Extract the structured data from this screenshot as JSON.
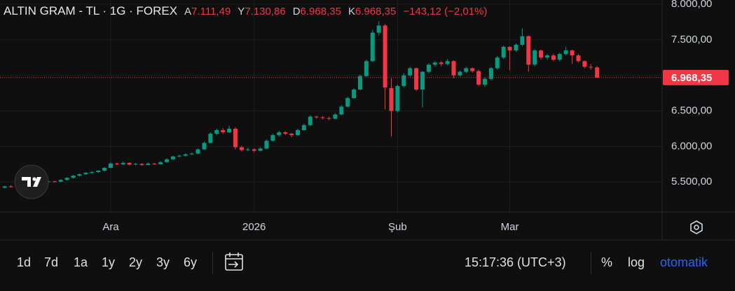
{
  "chart_data": {
    "type": "candlestick",
    "title": "ALTIN GRAM - TL · 1G · FOREX",
    "legend": {
      "open_key": "A",
      "open": "7.111,49",
      "high_key": "Y",
      "high": "7.130,86",
      "low_key": "D",
      "low": "6.968,35",
      "close_key": "K",
      "close": "6.968,35",
      "change": "−143,12 (−2,01%)"
    },
    "up_color": "#089981",
    "down_color": "#f23645",
    "grid": true,
    "categories": [
      null,
      null,
      null,
      null,
      null,
      null,
      null,
      null,
      null,
      null,
      null,
      null,
      null,
      null,
      null,
      null,
      null,
      "Ara",
      null,
      null,
      null,
      null,
      null,
      null,
      null,
      null,
      null,
      null,
      null,
      null,
      null,
      null,
      null,
      null,
      null,
      null,
      null,
      null,
      null,
      null,
      "2026",
      null,
      null,
      null,
      null,
      null,
      null,
      null,
      null,
      null,
      null,
      null,
      null,
      null,
      null,
      null,
      null,
      null,
      null,
      null,
      null,
      null,
      null,
      "Şub",
      null,
      null,
      null,
      null,
      null,
      null,
      null,
      null,
      null,
      null,
      null,
      null,
      null,
      null,
      null,
      null,
      null,
      "Mar",
      null,
      null,
      null,
      null,
      null,
      null,
      null,
      null,
      null,
      null,
      null,
      null,
      null
    ],
    "ohlc": [
      [
        5420,
        5450,
        5410,
        5440
      ],
      [
        5440,
        5455,
        5420,
        5430
      ],
      [
        5430,
        5460,
        5425,
        5450
      ],
      [
        5450,
        5480,
        5440,
        5470
      ],
      [
        5470,
        5500,
        5460,
        5490
      ],
      [
        5490,
        5505,
        5470,
        5480
      ],
      [
        5480,
        5515,
        5475,
        5500
      ],
      [
        5500,
        5525,
        5490,
        5510
      ],
      [
        5510,
        5520,
        5495,
        5505
      ],
      [
        5505,
        5540,
        5500,
        5530
      ],
      [
        5530,
        5570,
        5520,
        5560
      ],
      [
        5560,
        5600,
        5550,
        5590
      ],
      [
        5590,
        5620,
        5580,
        5610
      ],
      [
        5610,
        5640,
        5600,
        5630
      ],
      [
        5630,
        5655,
        5615,
        5640
      ],
      [
        5640,
        5670,
        5630,
        5660
      ],
      [
        5660,
        5710,
        5650,
        5700
      ],
      [
        5700,
        5780,
        5690,
        5760
      ],
      [
        5760,
        5775,
        5735,
        5750
      ],
      [
        5750,
        5790,
        5740,
        5770
      ],
      [
        5770,
        5780,
        5735,
        5745
      ],
      [
        5745,
        5770,
        5735,
        5755
      ],
      [
        5755,
        5765,
        5730,
        5740
      ],
      [
        5740,
        5775,
        5735,
        5760
      ],
      [
        5760,
        5770,
        5740,
        5750
      ],
      [
        5750,
        5795,
        5745,
        5780
      ],
      [
        5780,
        5835,
        5770,
        5820
      ],
      [
        5820,
        5870,
        5810,
        5860
      ],
      [
        5860,
        5885,
        5845,
        5870
      ],
      [
        5870,
        5905,
        5860,
        5890
      ],
      [
        5890,
        5915,
        5880,
        5900
      ],
      [
        5900,
        5975,
        5890,
        5960
      ],
      [
        5960,
        6070,
        5950,
        6050
      ],
      [
        6050,
        6200,
        6040,
        6180
      ],
      [
        6180,
        6250,
        6160,
        6230
      ],
      [
        6230,
        6260,
        6180,
        6200
      ],
      [
        6200,
        6290,
        6190,
        6250
      ],
      [
        6250,
        6270,
        5960,
        5990
      ],
      [
        5990,
        6010,
        5930,
        5950
      ],
      [
        5950,
        5985,
        5935,
        5960
      ],
      [
        5960,
        5975,
        5920,
        5940
      ],
      [
        5940,
        5990,
        5930,
        5970
      ],
      [
        5970,
        6100,
        5960,
        6080
      ],
      [
        6080,
        6180,
        6070,
        6160
      ],
      [
        6160,
        6220,
        6140,
        6200
      ],
      [
        6200,
        6215,
        6160,
        6180
      ],
      [
        6180,
        6190,
        6130,
        6160
      ],
      [
        6160,
        6250,
        6150,
        6230
      ],
      [
        6230,
        6320,
        6220,
        6300
      ],
      [
        6300,
        6440,
        6290,
        6420
      ],
      [
        6420,
        6435,
        6390,
        6410
      ],
      [
        6410,
        6430,
        6380,
        6400
      ],
      [
        6400,
        6420,
        6370,
        6390
      ],
      [
        6390,
        6470,
        6380,
        6450
      ],
      [
        6450,
        6580,
        6440,
        6560
      ],
      [
        6560,
        6700,
        6550,
        6680
      ],
      [
        6680,
        6820,
        6670,
        6800
      ],
      [
        6800,
        7010,
        6790,
        6990
      ],
      [
        6990,
        7220,
        6980,
        7200
      ],
      [
        7200,
        7640,
        7190,
        7600
      ],
      [
        7600,
        7760,
        7560,
        7700
      ],
      [
        7700,
        7720,
        6520,
        6830
      ],
      [
        6820,
        6960,
        6140,
        6500
      ],
      [
        6500,
        6870,
        6480,
        6850
      ],
      [
        6850,
        7030,
        6830,
        7000
      ],
      [
        7000,
        7120,
        6980,
        7100
      ],
      [
        7100,
        7110,
        6780,
        6800
      ],
      [
        6800,
        7060,
        6550,
        7050
      ],
      [
        7050,
        7170,
        7030,
        7150
      ],
      [
        7150,
        7200,
        7120,
        7180
      ],
      [
        7180,
        7200,
        7130,
        7160
      ],
      [
        7160,
        7230,
        7140,
        7200
      ],
      [
        7200,
        7210,
        6960,
        7000
      ],
      [
        7000,
        7070,
        6980,
        7050
      ],
      [
        7050,
        7120,
        7030,
        7100
      ],
      [
        7100,
        7110,
        7040,
        7060
      ],
      [
        7060,
        7080,
        6850,
        6870
      ],
      [
        6870,
        6970,
        6840,
        6950
      ],
      [
        6950,
        7120,
        6930,
        7100
      ],
      [
        7100,
        7270,
        7080,
        7250
      ],
      [
        7250,
        7420,
        7230,
        7400
      ],
      [
        7400,
        7410,
        7070,
        7350
      ],
      [
        7350,
        7450,
        7330,
        7430
      ],
      [
        7430,
        7660,
        7410,
        7550
      ],
      [
        7550,
        7560,
        7050,
        7150
      ],
      [
        7150,
        7370,
        7130,
        7350
      ],
      [
        7350,
        7360,
        7220,
        7250
      ],
      [
        7250,
        7300,
        7220,
        7280
      ],
      [
        7280,
        7300,
        7200,
        7220
      ],
      [
        7220,
        7320,
        7200,
        7300
      ],
      [
        7300,
        7400,
        7280,
        7350
      ],
      [
        7350,
        7360,
        7160,
        7280
      ],
      [
        7280,
        7300,
        7180,
        7200
      ],
      [
        7200,
        7210,
        7100,
        7120
      ],
      [
        7120,
        7160,
        7080,
        7110
      ],
      [
        7111.49,
        7130.86,
        6968.35,
        6968.35
      ]
    ],
    "last_price": {
      "value": 6968.35,
      "label": "6.968,35"
    },
    "ylim": [
      5080,
      8059
    ],
    "yticks": [
      {
        "value": 5500,
        "label": "5.500,00"
      },
      {
        "value": 6000,
        "label": "6.000,00"
      },
      {
        "value": 6500,
        "label": "6.500,00"
      },
      {
        "value": 7000,
        "label": "7.000,00"
      },
      {
        "value": 7500,
        "label": "7.500,00"
      },
      {
        "value": 8000,
        "label": "8.000,00"
      }
    ]
  },
  "toolbar": {
    "ranges": [
      "1d",
      "7d",
      "1a",
      "1y",
      "2y",
      "3y",
      "6y"
    ],
    "time": "15:17:36 (UTC+3)",
    "percent": "%",
    "log": "log",
    "auto": "otomatik"
  }
}
